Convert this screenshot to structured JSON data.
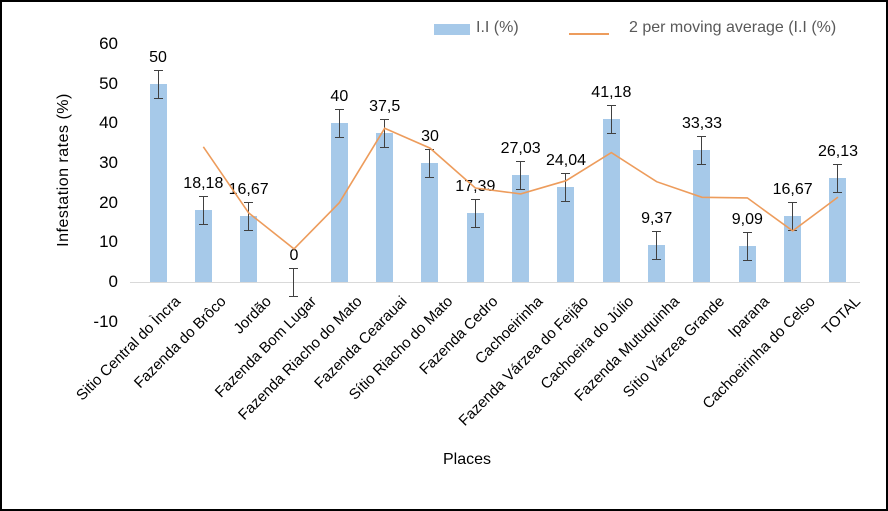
{
  "chart_data": {
    "type": "bar",
    "title": "",
    "xlabel": "Places",
    "ylabel": "Infestation rates (%)",
    "ylim": [
      -10,
      60
    ],
    "yticks": [
      60,
      50,
      40,
      30,
      20,
      10,
      0,
      -10
    ],
    "grid": false,
    "legend_position": "top",
    "categories": [
      "Sitio Central do Ìncra",
      "Fazenda do Brôco",
      "Jordão",
      "Fazenda Bom Lugar",
      "Fazenda Riacho do Mato",
      "Fazenda Cearauai",
      "Sítio Riacho do Mato",
      "Fazenda Cedro",
      "Cachoeirinha",
      "Fazenda Várzea do Feijão",
      "Cachoeira do Júlio",
      "Fazenda Mutuquinha",
      "Sítio Várzea Grande",
      "Iparana",
      "Cachoeirinha do Celso",
      "TOTAL"
    ],
    "series": [
      {
        "name": "I.I (%)",
        "type": "bar",
        "values": [
          50,
          18.18,
          16.67,
          0,
          40,
          37.5,
          30,
          17.39,
          27.03,
          24.04,
          41.18,
          9.37,
          33.33,
          9.09,
          16.67,
          26.13
        ],
        "labels": [
          "50",
          "18,18",
          "16,67",
          "0",
          "40",
          "37,5",
          "30",
          "17,39",
          "27,03",
          "24,04",
          "41,18",
          "9,37",
          "33,33",
          "9,09",
          "16,67",
          "26,13"
        ],
        "error_bar": 3.5
      },
      {
        "name": "2 per moving average (I.I (%)",
        "type": "line",
        "values": [
          null,
          34.09,
          17.43,
          8.34,
          20,
          38.75,
          33.75,
          23.7,
          22.21,
          25.54,
          32.61,
          25.28,
          21.35,
          21.21,
          12.88,
          21.4
        ]
      }
    ]
  },
  "colors": {
    "bar": "#A6C9E9",
    "line": "#ED9C5C",
    "error_bar": "#404040",
    "axis_line": "#D9D9D9",
    "legend_text": "#595959",
    "tick_text": "#000000"
  }
}
